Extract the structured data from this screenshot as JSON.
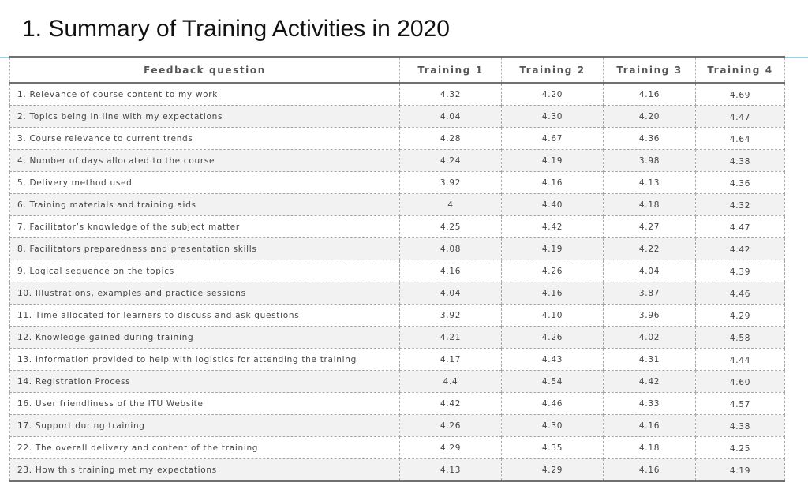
{
  "title": "1. Summary of Training Activities in 2020",
  "table": {
    "headers": [
      "Feedback question",
      "Training 1",
      "Training 2",
      "Training 3",
      "Training 4"
    ],
    "rows": [
      [
        "1.   Relevance of course content to my work",
        "4.32",
        "4.20",
        "4.16",
        "4.69"
      ],
      [
        "2.   Topics being in line with my expectations",
        "4.04",
        "4.30",
        "4.20",
        "4.47"
      ],
      [
        "3.    Course relevance to current trends",
        "4.28",
        "4.67",
        "4.36",
        "4.64"
      ],
      [
        "4.    Number of days allocated to the course",
        "4.24",
        "4.19",
        "3.98",
        "4.38"
      ],
      [
        "5.    Delivery method used",
        "3.92",
        "4.16",
        "4.13",
        "4.36"
      ],
      [
        "6.    Training materials and training aids",
        "4",
        "4.40",
        "4.18",
        "4.32"
      ],
      [
        "7.    Facilitator’s knowledge of the subject matter",
        "4.25",
        "4.42",
        "4.27",
        "4.47"
      ],
      [
        "8.    Facilitators preparedness and presentation skills",
        "4.08",
        "4.19",
        "4.22",
        "4.42"
      ],
      [
        "9.    Logical sequence on the topics",
        "4.16",
        "4.26",
        "4.04",
        "4.39"
      ],
      [
        "10.   Illustrations, examples and practice sessions",
        "4.04",
        "4.16",
        "3.87",
        "4.46"
      ],
      [
        "11.   Time allocated for learners to discuss and ask questions",
        "3.92",
        "4.10",
        "3.96",
        "4.29"
      ],
      [
        "12.   Knowledge gained during training",
        "4.21",
        "4.26",
        "4.02",
        "4.58"
      ],
      [
        "13.   Information provided to help with logistics for attending the training",
        "4.17",
        "4.43",
        "4.31",
        "4.44"
      ],
      [
        "14.    Registration Process",
        "4.4",
        "4.54",
        "4.42",
        "4.60"
      ],
      [
        "16.   User friendliness of the ITU Website",
        "4.42",
        "4.46",
        "4.33",
        "4.57"
      ],
      [
        "17.   Support during training",
        "4.26",
        "4.30",
        "4.16",
        "4.38"
      ],
      [
        "22.    The overall delivery and content of the training",
        "4.29",
        "4.35",
        "4.18",
        "4.25"
      ],
      [
        "23.   How this training met my expectations",
        "4.13",
        "4.29",
        "4.16",
        "4.19"
      ]
    ]
  }
}
